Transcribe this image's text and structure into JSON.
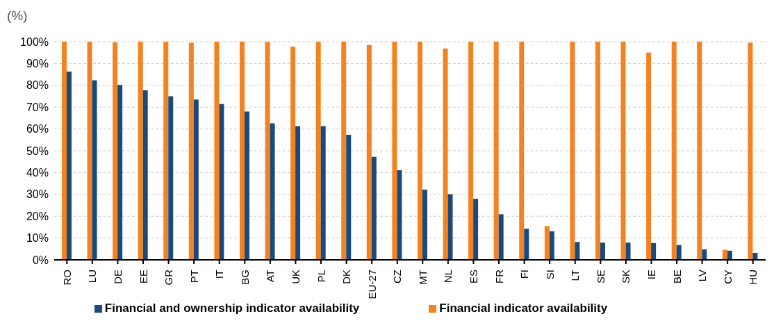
{
  "chart_data": {
    "type": "bar",
    "ylabel": "(%)",
    "categories": [
      "RO",
      "LU",
      "DE",
      "EE",
      "GR",
      "PT",
      "IT",
      "BG",
      "AT",
      "UK",
      "PL",
      "DK",
      "EU-27",
      "CZ",
      "MT",
      "NL",
      "ES",
      "FR",
      "FI",
      "SI",
      "LT",
      "SE",
      "SK",
      "IE",
      "BE",
      "LV",
      "CY",
      "HU"
    ],
    "series": [
      {
        "name": "Financial indicator availability",
        "color": "#f58220",
        "values": [
          100,
          100,
          99.8,
          100,
          100,
          99.5,
          100,
          100,
          100,
          97.7,
          100,
          100,
          98.5,
          100,
          100,
          96.9,
          100,
          100,
          100,
          15.5,
          100,
          100,
          100,
          95,
          100,
          100,
          4.6,
          99.5
        ]
      },
      {
        "name": "Financial and ownership indicator availability",
        "color": "#1a4a7c",
        "values": [
          86.3,
          82.3,
          80.2,
          77.7,
          75,
          73.5,
          71.4,
          68,
          62.6,
          61.3,
          61.3,
          57.3,
          47.2,
          41.1,
          32.2,
          30.1,
          28,
          20.9,
          14.3,
          13.1,
          8.2,
          7.9,
          7.9,
          7.7,
          6.8,
          4.8,
          4.2,
          3.2
        ]
      }
    ],
    "ylim": [
      0,
      100
    ],
    "yticks": [
      {
        "value": 0,
        "label": "0%"
      },
      {
        "value": 10,
        "label": "10%"
      },
      {
        "value": 20,
        "label": "20%"
      },
      {
        "value": 30,
        "label": "30%"
      },
      {
        "value": 40,
        "label": "40%"
      },
      {
        "value": 50,
        "label": "50%"
      },
      {
        "value": 60,
        "label": "60%"
      },
      {
        "value": 70,
        "label": "70%"
      },
      {
        "value": 80,
        "label": "80%"
      },
      {
        "value": 90,
        "label": "90%"
      },
      {
        "value": 100,
        "label": "100%"
      }
    ],
    "grid": "y",
    "legend": "bottom"
  }
}
